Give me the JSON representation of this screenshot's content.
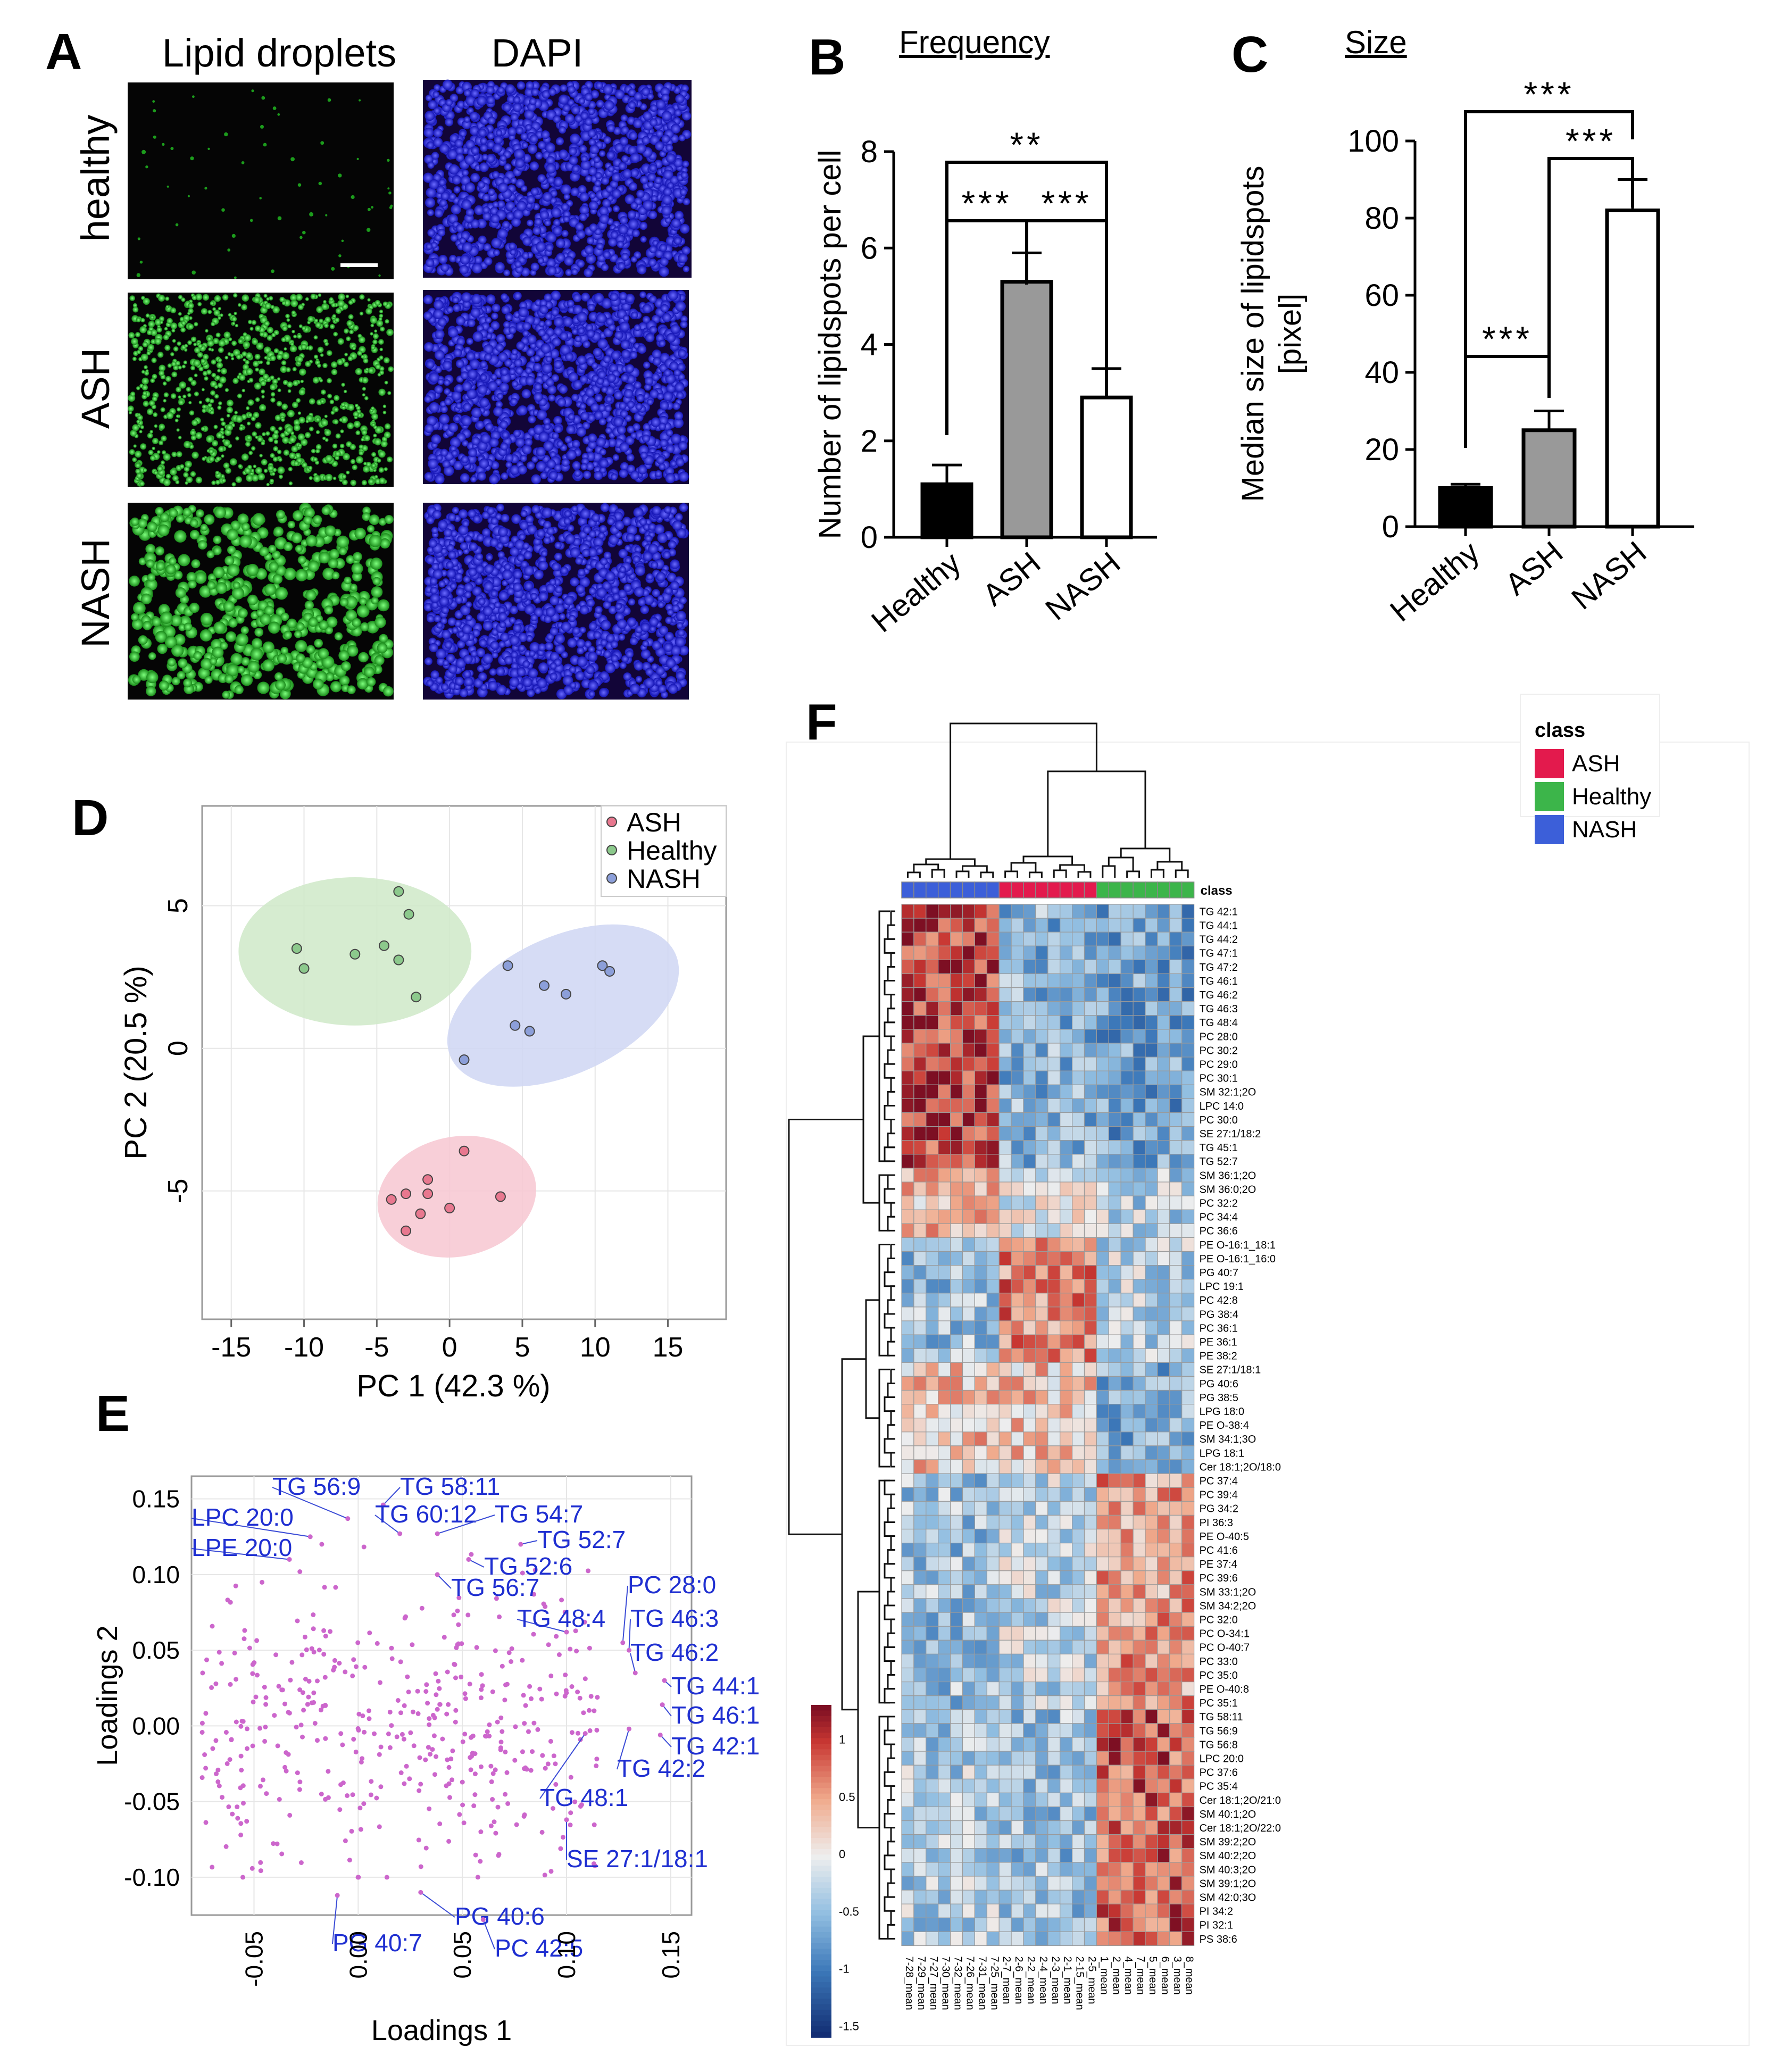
{
  "panel_letters": [
    "A",
    "B",
    "C",
    "D",
    "E",
    "F"
  ],
  "panelA": {
    "column_labels": [
      "Lipid droplets",
      "DAPI"
    ],
    "row_labels": [
      "healthy",
      "ASH",
      "NASH"
    ]
  },
  "chart_data": [
    {
      "panel": "B",
      "type": "bar",
      "title": "Frequency",
      "ylabel": "Number of lipidspots per cell",
      "categories": [
        "Healthy",
        "ASH",
        "NASH"
      ],
      "values": [
        1.1,
        5.3,
        2.9
      ],
      "errors": [
        0.4,
        0.6,
        0.6
      ],
      "bar_colors": [
        "#000000",
        "#999999",
        "#ffffff"
      ],
      "ylim": [
        0,
        8
      ],
      "yticks": [
        "0",
        "2",
        "4",
        "6",
        "8"
      ],
      "significance": [
        {
          "from": "Healthy",
          "to": "ASH",
          "label": "***"
        },
        {
          "from": "ASH",
          "to": "NASH",
          "label": "***"
        },
        {
          "from": "Healthy",
          "to": "NASH",
          "label": "**"
        }
      ]
    },
    {
      "panel": "C",
      "type": "bar",
      "title": "Size",
      "ylabel": "Median size of lipidspots [pixel]",
      "ylabel_lines": [
        "Median size of lipidspots",
        "[pixel]"
      ],
      "categories": [
        "Healthy",
        "ASH",
        "NASH"
      ],
      "values": [
        10,
        25,
        82
      ],
      "errors": [
        1,
        5,
        8
      ],
      "bar_colors": [
        "#000000",
        "#999999",
        "#ffffff"
      ],
      "ylim": [
        0,
        100
      ],
      "yticks": [
        "0",
        "20",
        "40",
        "60",
        "80",
        "100"
      ],
      "significance": [
        {
          "from": "Healthy",
          "to": "ASH",
          "label": "***"
        },
        {
          "from": "ASH",
          "to": "NASH",
          "label": "***"
        },
        {
          "from": "Healthy",
          "to": "NASH",
          "label": "***"
        }
      ]
    },
    {
      "panel": "D",
      "type": "scatter",
      "xlabel": "PC 1 (42.3 %)",
      "ylabel": "PC 2 (20.5 %)",
      "xlim": [
        -17,
        19
      ],
      "ylim": [
        -9.5,
        8.5
      ],
      "xticks": [
        "-15",
        "-10",
        "-5",
        "0",
        "5",
        "10",
        "15"
      ],
      "yticks": [
        "-5",
        "0",
        "5"
      ],
      "legend_position": "top-right",
      "series": [
        {
          "name": "ASH",
          "color": "#e8788f",
          "points": [
            [
              -4,
              -5.3
            ],
            [
              -3,
              -5.1
            ],
            [
              -2,
              -5.8
            ],
            [
              -1.5,
              -5.1
            ],
            [
              -1.5,
              -4.6
            ],
            [
              0,
              -5.6
            ],
            [
              1,
              -3.6
            ],
            [
              3.5,
              -5.2
            ],
            [
              -3,
              -6.4
            ]
          ]
        },
        {
          "name": "Healthy",
          "color": "#8cc98c",
          "points": [
            [
              -10.5,
              3.5
            ],
            [
              -10,
              2.8
            ],
            [
              -6.5,
              3.3
            ],
            [
              -4.5,
              3.6
            ],
            [
              -3.5,
              3.1
            ],
            [
              -3.5,
              5.5
            ],
            [
              -2.8,
              4.7
            ],
            [
              -2.3,
              1.8
            ]
          ]
        },
        {
          "name": "NASH",
          "color": "#8c9fd9",
          "points": [
            [
              1,
              -0.4
            ],
            [
              4,
              2.9
            ],
            [
              4.5,
              0.8
            ],
            [
              5.5,
              0.6
            ],
            [
              6.5,
              2.2
            ],
            [
              8,
              1.9
            ],
            [
              10.5,
              2.9
            ],
            [
              11,
              2.7
            ]
          ]
        }
      ]
    },
    {
      "panel": "E",
      "type": "scatter",
      "xlabel": "Loadings 1",
      "ylabel": "Loadings 2",
      "xlim": [
        -0.08,
        0.16
      ],
      "ylim": [
        -0.125,
        0.165
      ],
      "xticks": [
        "-0.05",
        "0.00",
        "0.05",
        "0.10",
        "0.15"
      ],
      "yticks": [
        "0.15",
        "0.10",
        "0.05",
        "0.00",
        "-0.05",
        "-0.10"
      ],
      "point_color": "#cc66cc",
      "labeled_points": [
        {
          "label": "TG 56:9",
          "x": -0.005,
          "y": 0.137
        },
        {
          "label": "TG 58:11",
          "x": 0.012,
          "y": 0.146
        },
        {
          "label": "TG 60:12",
          "x": 0.02,
          "y": 0.127
        },
        {
          "label": "TG 54:7",
          "x": 0.038,
          "y": 0.127
        },
        {
          "label": "LPC 20:0",
          "x": -0.023,
          "y": 0.125
        },
        {
          "label": "TG 52:7",
          "x": 0.078,
          "y": 0.12
        },
        {
          "label": "LPE 20:0",
          "x": -0.033,
          "y": 0.11
        },
        {
          "label": "TG 52:6",
          "x": 0.053,
          "y": 0.11
        },
        {
          "label": "TG 56:7",
          "x": 0.038,
          "y": 0.1
        },
        {
          "label": "PC 28:0",
          "x": 0.127,
          "y": 0.055
        },
        {
          "label": "TG 48:4",
          "x": 0.1,
          "y": 0.062
        },
        {
          "label": "TG 46:3",
          "x": 0.13,
          "y": 0.05
        },
        {
          "label": "TG 46:2",
          "x": 0.133,
          "y": 0.035
        },
        {
          "label": "TG 44:1",
          "x": 0.147,
          "y": 0.03
        },
        {
          "label": "TG 46:1",
          "x": 0.146,
          "y": 0.014
        },
        {
          "label": "TG 42:1",
          "x": 0.145,
          "y": -0.006
        },
        {
          "label": "TG 42:2",
          "x": 0.13,
          "y": -0.002
        },
        {
          "label": "TG 48:1",
          "x": 0.109,
          "y": -0.005
        },
        {
          "label": "SE 27:1/18:1",
          "x": 0.1,
          "y": -0.062
        },
        {
          "label": "PG 40:6",
          "x": 0.03,
          "y": -0.11
        },
        {
          "label": "PG 40:7",
          "x": -0.01,
          "y": -0.112
        },
        {
          "label": "PC 42:5",
          "x": 0.06,
          "y": -0.128
        }
      ]
    },
    {
      "panel": "F",
      "type": "heatmap",
      "legend_title": "class",
      "classes": [
        {
          "name": "ASH",
          "color": "#e31a4d"
        },
        {
          "name": "Healthy",
          "color": "#3cb54a"
        },
        {
          "name": "NASH",
          "color": "#3c5fd9"
        }
      ],
      "class_row_label": "class",
      "colorbar_ticks": [
        "1",
        "0.5",
        "0",
        "-0.5",
        "-1",
        "-1.5"
      ],
      "columns": [
        "7-28_mean",
        "7-29_mean",
        "7-27_mean",
        "7-30_mean",
        "7-32_mean",
        "7-26_mean",
        "7-31_mean",
        "7-25_mean",
        "2-7_mean",
        "2-6_mean",
        "2-2_mean",
        "2-4_mean",
        "2-3_mean",
        "2-1_mean",
        "2-15_mean",
        "2-5_mean",
        "1_mean",
        "2_mean",
        "4_mean",
        "7_mean",
        "5_mean",
        "6_mean",
        "3_mean",
        "8_mean"
      ],
      "column_classes": [
        "NASH",
        "NASH",
        "NASH",
        "NASH",
        "NASH",
        "NASH",
        "NASH",
        "NASH",
        "ASH",
        "ASH",
        "ASH",
        "ASH",
        "ASH",
        "ASH",
        "ASH",
        "ASH",
        "Healthy",
        "Healthy",
        "Healthy",
        "Healthy",
        "Healthy",
        "Healthy",
        "Healthy",
        "Healthy"
      ],
      "rows": [
        "TG 42:1",
        "TG 44:1",
        "TG 44:2",
        "TG 47:1",
        "TG 47:2",
        "TG 46:1",
        "TG 46:2",
        "TG 46:3",
        "TG 48:4",
        "PC 28:0",
        "PC 30:2",
        "PC 29:0",
        "PC 30:1",
        "SM 32:1;2O",
        "LPC 14:0",
        "PC 30:0",
        "SE 27:1/18:2",
        "TG 45:1",
        "TG 52:7",
        "SM 36:1;2O",
        "SM 36:0;2O",
        "PC 32:2",
        "PC 34:4",
        "PC 36:6",
        "PE O-16:1_18:1",
        "PE O-16:1_16:0",
        "PG 40:7",
        "LPC 19:1",
        "PC 42:8",
        "PG 38:4",
        "PC 36:1",
        "PE 36:1",
        "PE 38:2",
        "SE 27:1/18:1",
        "PG 40:6",
        "PG 38:5",
        "LPG 18:0",
        "PE O-38:4",
        "SM 34:1;3O",
        "LPG 18:1",
        "Cer 18:1;2O/18:0",
        "PC 37:4",
        "PC 39:4",
        "PG 34:2",
        "PI 36:3",
        "PE O-40:5",
        "PC 41:6",
        "PE 37:4",
        "PC 39:6",
        "SM 33:1;2O",
        "SM 34:2;2O",
        "PC 32:0",
        "PC O-34:1",
        "PC O-40:7",
        "PC 33:0",
        "PC 35:0",
        "PE O-40:8",
        "PC 35:1",
        "TG 58:11",
        "TG 56:9",
        "TG 56:8",
        "LPC 20:0",
        "PC 37:6",
        "PC 35:4",
        "Cer 18:1;2O/21:0",
        "SM 40:1;2O",
        "Cer 18:1;2O/22:0",
        "SM 39:2;2O",
        "SM 40:2;2O",
        "SM 40:3;2O",
        "SM 39:1;2O",
        "SM 42:0;3O",
        "PI 34:2",
        "PI 32:1",
        "PS 38:6"
      ],
      "row_groups": [
        {
          "rows": "1-19",
          "NASH": 1.0,
          "ASH": -0.55,
          "Healthy": -0.7
        },
        {
          "rows": "20-24",
          "NASH": 0.35,
          "ASH": -0.05,
          "Healthy": -0.3
        },
        {
          "rows": "25-33",
          "NASH": -0.45,
          "ASH": 0.65,
          "Healthy": -0.3
        },
        {
          "rows": "34-41",
          "NASH": 0.3,
          "ASH": 0.3,
          "Healthy": -0.6
        },
        {
          "rows": "42-58",
          "NASH": -0.45,
          "ASH": -0.25,
          "Healthy": 0.55
        },
        {
          "rows": "59-75",
          "NASH": -0.35,
          "ASH": -0.45,
          "Healthy": 0.85
        }
      ]
    }
  ]
}
